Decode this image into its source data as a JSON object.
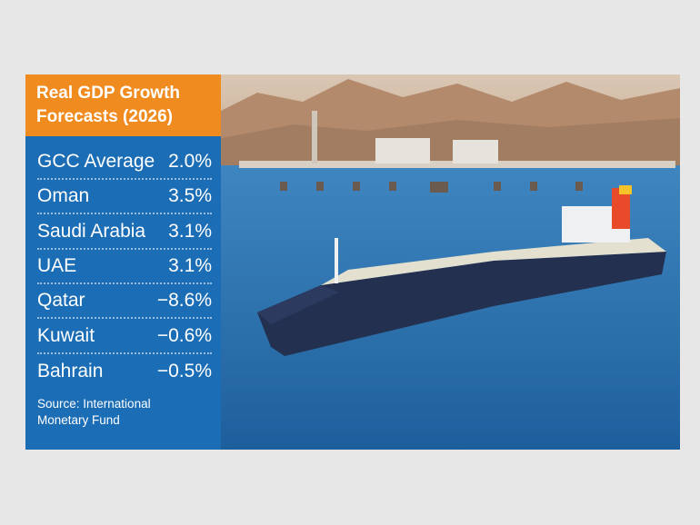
{
  "header": {
    "title": "Real GDP Growth Forecasts (2026)"
  },
  "table": {
    "rows": [
      [
        "GCC Average",
        "2.0%"
      ],
      [
        "Oman",
        "3.5%"
      ],
      [
        "Saudi Arabia",
        "3.1%"
      ],
      [
        "UAE",
        "3.1%"
      ],
      [
        "Qatar",
        "−8.6%"
      ],
      [
        "Kuwait",
        "−0.6%"
      ],
      [
        "Bahrain",
        "−0.5%"
      ]
    ]
  },
  "source": "Source: International Monetary Fund"
}
